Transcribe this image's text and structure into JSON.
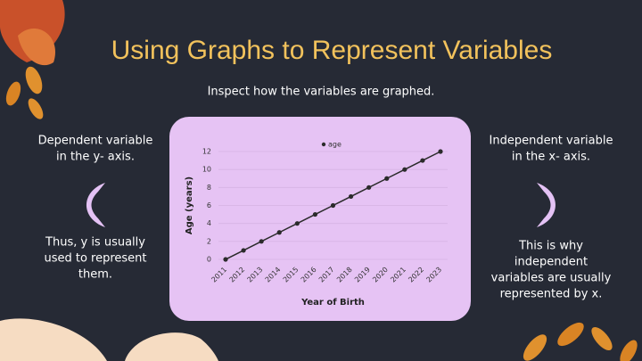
{
  "title": "Using Graphs to Represent Variables",
  "subtitle": "Inspect how the variables are graphed.",
  "left": {
    "top": [
      "Dependent variable",
      "in the y- axis."
    ],
    "bottom": [
      "Thus, y is usually",
      "used to represent",
      "them."
    ]
  },
  "right": {
    "top": [
      "Independent variable",
      "in the x- axis."
    ],
    "bottom": [
      "This is why",
      "independent",
      "variables are usually",
      "represented by x."
    ]
  },
  "chart_data": {
    "type": "line",
    "xlabel": "Year of Birth",
    "ylabel": "Age (years)",
    "categories": [
      "2011",
      "2012",
      "2013",
      "2014",
      "2015",
      "2016",
      "2017",
      "2018",
      "2019",
      "2020",
      "2021",
      "2022",
      "2023"
    ],
    "series": [
      {
        "name": "age",
        "color": "#2b2b2b",
        "values": [
          0,
          1,
          2,
          3,
          4,
          5,
          6,
          7,
          8,
          9,
          10,
          11,
          12
        ]
      }
    ],
    "ylim": [
      0,
      12
    ],
    "yticks": [
      0,
      2,
      4,
      6,
      8,
      10,
      12
    ],
    "grid": true,
    "legend": "top"
  }
}
